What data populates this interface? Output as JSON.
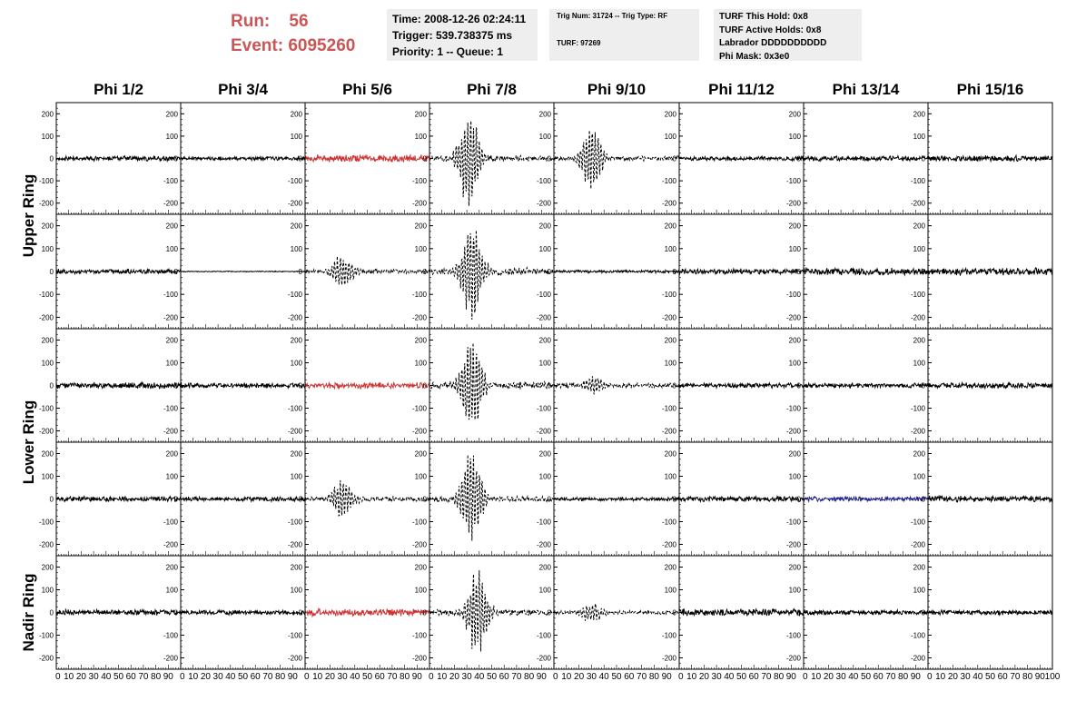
{
  "run_info": {
    "run_label": "Run:",
    "run_value": "56",
    "event_label": "Event:",
    "event_value": "6095260"
  },
  "info_box_1": {
    "time": "Time: 2008-12-26 02:24:11",
    "trigger": "Trigger: 539.738375 ms",
    "priority": "Priority: 1 -- Queue: 1"
  },
  "info_box_2": {
    "trig": "Trig Num: 31724 -- Trig Type: RF",
    "turf": "TURF: 97269"
  },
  "info_box_3": {
    "hold": "TURF This Hold: 0x8",
    "active": "TURF Active Holds: 0x8",
    "labrador": "Labrador DDDDDDDDDD",
    "phimask": "Phi Mask: 0x3e0"
  },
  "colors": {
    "trace": "#000000",
    "highlight": "#cc3333",
    "blue": "#22228a",
    "title": "#cc5555",
    "box_bg": "#eeeeee"
  },
  "chart_data": {
    "type": "line",
    "columns": [
      "Phi 1/2",
      "Phi 3/4",
      "Phi 5/6",
      "Phi 7/8",
      "Phi 9/10",
      "Phi 11/12",
      "Phi 13/14",
      "Phi 15/16"
    ],
    "rings": [
      "Upper Ring",
      "Lower Ring",
      "Nadir Ring"
    ],
    "ylim": [
      -250,
      250
    ],
    "xlim": [
      0,
      100
    ],
    "y_ticks": [
      -200,
      -100,
      0,
      100,
      200
    ],
    "x_ticks": [
      0,
      10,
      20,
      30,
      40,
      50,
      60,
      70,
      80,
      90,
      100
    ],
    "x_tick_labels": [
      "0",
      "10",
      "20",
      "30",
      "40",
      "50",
      "60",
      "70",
      "80",
      "90",
      "100"
    ],
    "rows": [
      {
        "cells": [
          {
            "color": "black",
            "noise": 8,
            "pulse": 0,
            "center": 0,
            "dashed": false
          },
          {
            "color": "black",
            "noise": 6,
            "pulse": 0,
            "center": 0,
            "dashed": false
          },
          {
            "color": "red",
            "noise": 12,
            "pulse": 0,
            "center": 0,
            "dashed": false
          },
          {
            "color": "black",
            "noise": 10,
            "pulse": 230,
            "center": 32,
            "dashed": true
          },
          {
            "color": "black",
            "noise": 8,
            "pulse": 150,
            "center": 30,
            "dashed": true
          },
          {
            "color": "black",
            "noise": 7,
            "pulse": 0,
            "center": 0,
            "dashed": false
          },
          {
            "color": "black",
            "noise": 8,
            "pulse": 0,
            "center": 0,
            "dashed": false
          },
          {
            "color": "black",
            "noise": 10,
            "pulse": 0,
            "center": 0,
            "dashed": false
          }
        ]
      },
      {
        "cells": [
          {
            "color": "black",
            "noise": 8,
            "pulse": 0,
            "center": 0,
            "dashed": false
          },
          {
            "color": "black",
            "noise": 1.5,
            "pulse": 0,
            "center": 0,
            "dashed": false
          },
          {
            "color": "black",
            "noise": 8,
            "pulse": 80,
            "center": 30,
            "dashed": true
          },
          {
            "color": "black",
            "noise": 12,
            "pulse": 230,
            "center": 34,
            "dashed": true
          },
          {
            "color": "black",
            "noise": 5,
            "pulse": 0,
            "center": 0,
            "dashed": false
          },
          {
            "color": "black",
            "noise": 9,
            "pulse": 0,
            "center": 0,
            "dashed": false
          },
          {
            "color": "black",
            "noise": 12,
            "pulse": 0,
            "center": 0,
            "dashed": false
          },
          {
            "color": "black",
            "noise": 12,
            "pulse": 0,
            "center": 0,
            "dashed": false
          }
        ]
      },
      {
        "cells": [
          {
            "color": "black",
            "noise": 10,
            "pulse": 0,
            "center": 0,
            "dashed": false
          },
          {
            "color": "black",
            "noise": 8,
            "pulse": 0,
            "center": 0,
            "dashed": false
          },
          {
            "color": "red",
            "noise": 10,
            "pulse": 0,
            "center": 0,
            "dashed": false
          },
          {
            "color": "black",
            "noise": 12,
            "pulse": 220,
            "center": 34,
            "dashed": true
          },
          {
            "color": "black",
            "noise": 8,
            "pulse": 45,
            "center": 32,
            "dashed": true
          },
          {
            "color": "black",
            "noise": 8,
            "pulse": 0,
            "center": 0,
            "dashed": false
          },
          {
            "color": "black",
            "noise": 8,
            "pulse": 0,
            "center": 0,
            "dashed": false
          },
          {
            "color": "black",
            "noise": 9,
            "pulse": 0,
            "center": 0,
            "dashed": false
          }
        ]
      },
      {
        "cells": [
          {
            "color": "black",
            "noise": 8,
            "pulse": 0,
            "center": 0,
            "dashed": false
          },
          {
            "color": "black",
            "noise": 8,
            "pulse": 0,
            "center": 0,
            "dashed": false
          },
          {
            "color": "black",
            "noise": 8,
            "pulse": 90,
            "center": 30,
            "dashed": true
          },
          {
            "color": "black",
            "noise": 10,
            "pulse": 230,
            "center": 34,
            "dashed": true
          },
          {
            "color": "black",
            "noise": 6,
            "pulse": 0,
            "center": 0,
            "dashed": false
          },
          {
            "color": "black",
            "noise": 9,
            "pulse": 0,
            "center": 0,
            "dashed": false
          },
          {
            "color": "blue",
            "noise": 8,
            "pulse": 0,
            "center": 0,
            "dashed": false
          },
          {
            "color": "black",
            "noise": 10,
            "pulse": 0,
            "center": 0,
            "dashed": false
          }
        ]
      },
      {
        "cells": [
          {
            "color": "black",
            "noise": 10,
            "pulse": 0,
            "center": 0,
            "dashed": false
          },
          {
            "color": "black",
            "noise": 8,
            "pulse": 0,
            "center": 0,
            "dashed": false
          },
          {
            "color": "red",
            "noise": 12,
            "pulse": 0,
            "center": 0,
            "dashed": false
          },
          {
            "color": "black",
            "noise": 10,
            "pulse": 200,
            "center": 38,
            "dashed": true
          },
          {
            "color": "black",
            "noise": 6,
            "pulse": 50,
            "center": 30,
            "dashed": true
          },
          {
            "color": "black",
            "noise": 12,
            "pulse": 0,
            "center": 0,
            "dashed": false
          },
          {
            "color": "black",
            "noise": 8,
            "pulse": 0,
            "center": 0,
            "dashed": false
          },
          {
            "color": "black",
            "noise": 8,
            "pulse": 0,
            "center": 0,
            "dashed": false
          }
        ]
      }
    ]
  }
}
